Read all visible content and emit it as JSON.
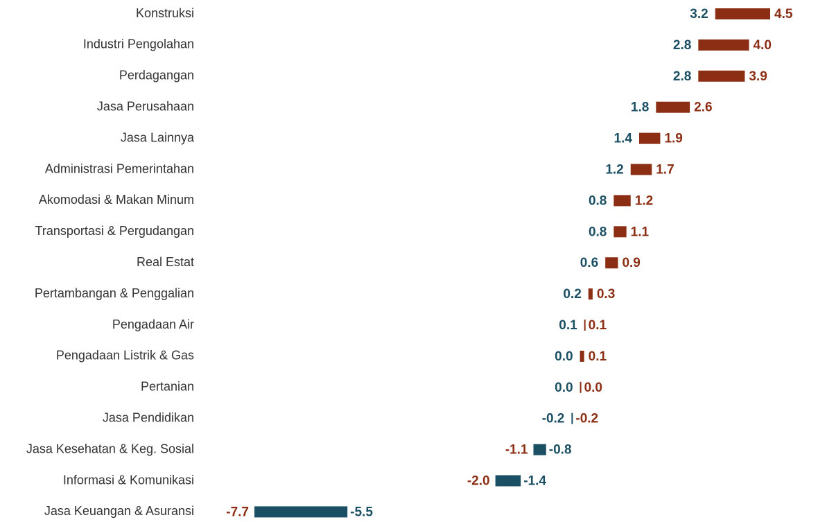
{
  "chart_data": {
    "type": "range_bar",
    "categories": [
      "Konstruksi",
      "Industri Pengolahan",
      "Perdagangan",
      "Jasa Perusahaan",
      "Jasa Lainnya",
      "Administrasi Pemerintahan",
      "Akomodasi & Makan Minum",
      "Transportasi & Pergudangan",
      "Real Estat",
      "Pertambangan & Penggalian",
      "Pengadaan Air",
      "Pengadaan Listrik & Gas",
      "Pertanian",
      "Jasa Pendidikan",
      "Jasa Kesehatan & Keg. Sosial",
      "Informasi & Komunikasi",
      "Jasa Keuangan & Asuransi"
    ],
    "series": [
      {
        "color": "#1b4f63",
        "values": [
          3.2,
          2.8,
          2.8,
          1.8,
          1.4,
          1.2,
          0.8,
          0.8,
          0.6,
          0.2,
          0.1,
          0.0,
          0.0,
          -0.2,
          -0.8,
          -1.4,
          -5.5
        ],
        "value_labels": [
          "3.2",
          "2.8",
          "2.8",
          "1.8",
          "1.4",
          "1.2",
          "0.8",
          "0.8",
          "0.6",
          "0.2",
          "0.1",
          "0.0",
          "0.0",
          "-0.2",
          "-0.8",
          "-1.4",
          "-5.5"
        ]
      },
      {
        "color": "#8b2e14",
        "values": [
          4.5,
          4.0,
          3.9,
          2.6,
          1.9,
          1.7,
          1.2,
          1.1,
          0.9,
          0.3,
          0.1,
          0.1,
          0.0,
          -0.2,
          -1.1,
          -2.0,
          -7.7
        ],
        "value_labels": [
          "4.5",
          "4.0",
          "3.9",
          "2.6",
          "1.9",
          "1.7",
          "1.2",
          "1.1",
          "0.9",
          "0.3",
          "0.1",
          "0.1",
          "0.0",
          "-0.2",
          "-1.1",
          "-2.0",
          "-7.7"
        ]
      }
    ]
  }
}
